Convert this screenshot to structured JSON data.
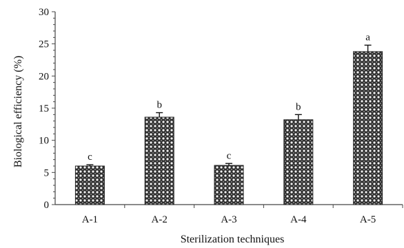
{
  "chart_data": {
    "type": "bar",
    "title": "",
    "xlabel": "Sterilization techniques",
    "ylabel": "Biological efficiency (%)",
    "ylim": [
      0,
      30
    ],
    "yticks": [
      0,
      5,
      10,
      15,
      20,
      25,
      30
    ],
    "categories": [
      "A-1",
      "A-2",
      "A-3",
      "A-4",
      "A-5"
    ],
    "values": [
      6.0,
      13.6,
      6.1,
      13.2,
      23.8
    ],
    "errors": [
      0.2,
      0.7,
      0.3,
      0.8,
      1.0
    ],
    "labels": [
      "c",
      "b",
      "c",
      "b",
      "a"
    ],
    "grid": false,
    "legend": "none"
  }
}
